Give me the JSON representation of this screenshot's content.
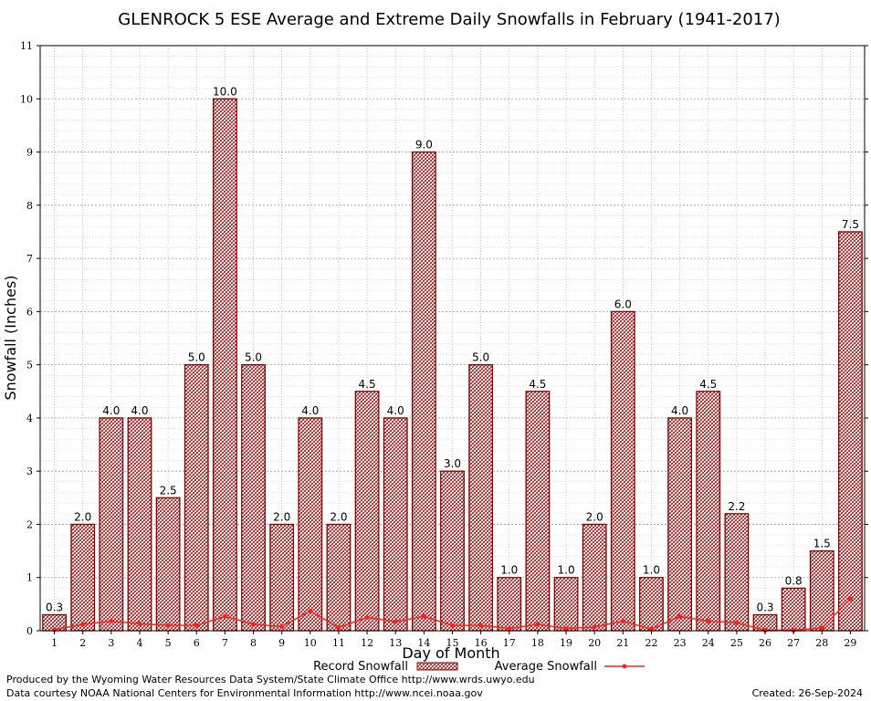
{
  "chart_data": {
    "type": "bar",
    "title": "GLENROCK 5 ESE Average and Extreme Daily Snowfalls in February (1941-2017)",
    "xlabel": "Day of Month",
    "ylabel": "Snowfall (Inches)",
    "ylim": [
      0,
      11
    ],
    "yticks": [
      0,
      1,
      2,
      3,
      4,
      5,
      6,
      7,
      8,
      9,
      10,
      11
    ],
    "grid": true,
    "legend_placement": "bottom",
    "categories": [
      "1",
      "2",
      "3",
      "4",
      "5",
      "6",
      "7",
      "8",
      "9",
      "10",
      "11",
      "12",
      "13",
      "14",
      "15",
      "16",
      "17",
      "18",
      "19",
      "20",
      "21",
      "22",
      "23",
      "24",
      "25",
      "26",
      "27",
      "28",
      "29"
    ],
    "series": [
      {
        "name": "Record Snowfall",
        "kind": "bar",
        "color": "#8b0000",
        "values": [
          0.3,
          2.0,
          4.0,
          4.0,
          2.5,
          5.0,
          10.0,
          5.0,
          2.0,
          4.0,
          2.0,
          4.5,
          4.0,
          9.0,
          3.0,
          5.0,
          1.0,
          4.5,
          1.0,
          2.0,
          6.0,
          1.0,
          4.0,
          4.5,
          2.2,
          0.3,
          0.8,
          1.5,
          7.5
        ],
        "labels": [
          "0.3",
          "2.0",
          "4.0",
          "4.0",
          "2.5",
          "5.0",
          "10.0",
          "5.0",
          "2.0",
          "4.0",
          "2.0",
          "4.5",
          "4.0",
          "9.0",
          "3.0",
          "5.0",
          "1.0",
          "4.5",
          "1.0",
          "2.0",
          "6.0",
          "1.0",
          "4.0",
          "4.5",
          "2.2",
          "0.3",
          "0.8",
          "1.5",
          "7.5"
        ]
      },
      {
        "name": "Average Snowfall",
        "kind": "line",
        "color": "#ff2020",
        "values": [
          0.02,
          0.12,
          0.18,
          0.13,
          0.1,
          0.1,
          0.27,
          0.12,
          0.08,
          0.37,
          0.06,
          0.25,
          0.17,
          0.27,
          0.1,
          0.1,
          0.04,
          0.12,
          0.04,
          0.07,
          0.18,
          0.03,
          0.27,
          0.18,
          0.15,
          0.01,
          0.01,
          0.05,
          0.6
        ]
      }
    ]
  },
  "footer": {
    "produced_by": "Produced by the Wyoming Water Resources Data System/State Climate Office http://www.wrds.uwyo.edu",
    "data_courtesy": "Data courtesy NOAA National Centers for Environmental Information http://www.ncei.noaa.gov",
    "created": "Created: 26-Sep-2024"
  }
}
